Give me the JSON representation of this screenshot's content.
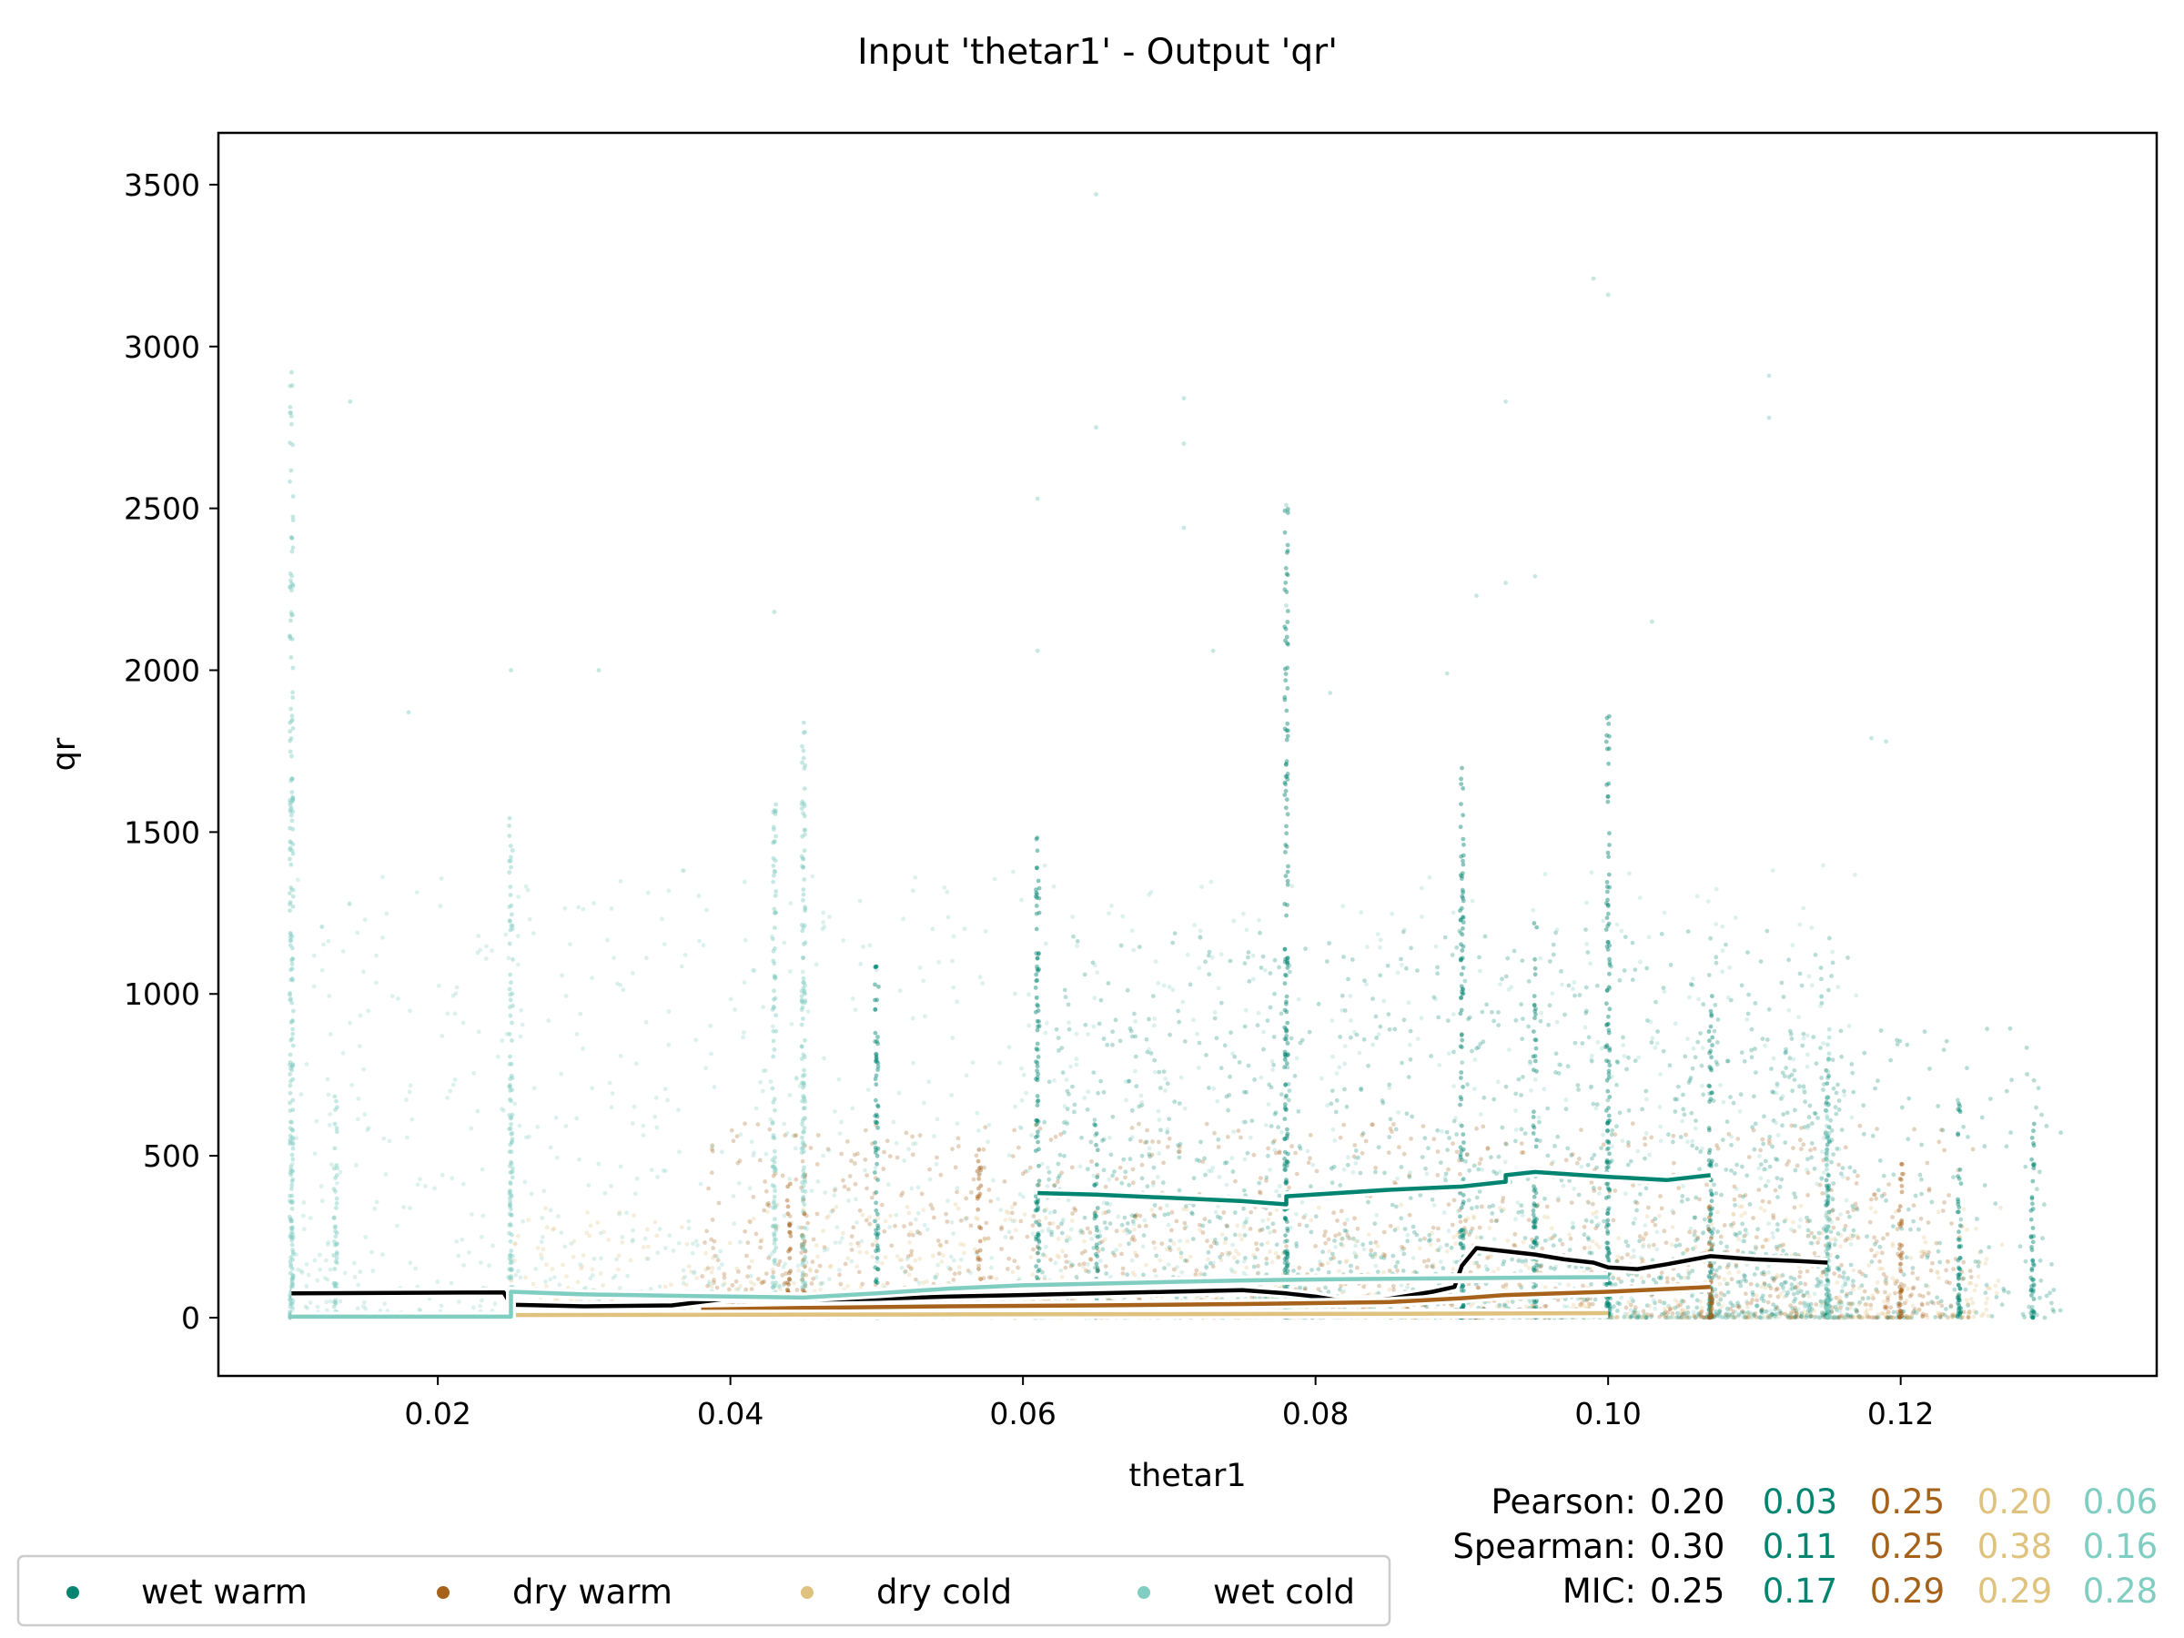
{
  "chart_data": {
    "type": "scatter",
    "title": "Input 'thetar1' - Output 'qr'",
    "xlabel": "thetar1",
    "ylabel": "qr",
    "xlim": [
      0.005,
      0.1375
    ],
    "ylim": [
      -180,
      3660
    ],
    "x_ticks": [
      0.02,
      0.04,
      0.06,
      0.08,
      0.1,
      0.12
    ],
    "x_tick_labels": [
      "0.02",
      "0.04",
      "0.06",
      "0.08",
      "0.10",
      "0.12"
    ],
    "y_ticks": [
      0,
      500,
      1000,
      1500,
      2000,
      2500,
      3000,
      3500
    ],
    "y_tick_labels": [
      "0",
      "500",
      "1000",
      "1500",
      "2000",
      "2500",
      "3000",
      "3500"
    ],
    "grid": false,
    "legend_position": "bottom-left, below axes",
    "colors": {
      "overall": "#000000",
      "wet warm": "#018571",
      "dry warm": "#a6611a",
      "dry cold": "#dfc27d",
      "wet cold": "#80cdc1"
    },
    "series": [
      {
        "name": "wet warm",
        "color": "#018571",
        "marker": "point",
        "x_range": [
          0.061,
          0.107
        ],
        "mean_curve": [
          [
            0.061,
            385
          ],
          [
            0.065,
            380
          ],
          [
            0.07,
            370
          ],
          [
            0.075,
            360
          ],
          [
            0.078,
            350
          ],
          [
            0.078,
            375
          ],
          [
            0.085,
            395
          ],
          [
            0.09,
            405
          ],
          [
            0.093,
            420
          ],
          [
            0.093,
            440
          ],
          [
            0.095,
            450
          ],
          [
            0.1,
            435
          ],
          [
            0.104,
            425
          ],
          [
            0.107,
            440
          ]
        ]
      },
      {
        "name": "dry warm",
        "color": "#a6611a",
        "marker": "point",
        "x_range": [
          0.038,
          0.107
        ],
        "mean_curve": [
          [
            0.038,
            25
          ],
          [
            0.045,
            30
          ],
          [
            0.055,
            35
          ],
          [
            0.065,
            38
          ],
          [
            0.075,
            42
          ],
          [
            0.085,
            48
          ],
          [
            0.09,
            60
          ],
          [
            0.093,
            70
          ],
          [
            0.1,
            80
          ],
          [
            0.107,
            95
          ]
        ]
      },
      {
        "name": "dry cold",
        "color": "#dfc27d",
        "marker": "point",
        "x_range": [
          0.025,
          0.1
        ],
        "mean_curve": [
          [
            0.025,
            8
          ],
          [
            0.04,
            9
          ],
          [
            0.055,
            10
          ],
          [
            0.07,
            11
          ],
          [
            0.085,
            12
          ],
          [
            0.1,
            14
          ]
        ]
      },
      {
        "name": "wet cold",
        "color": "#80cdc1",
        "marker": "point",
        "x_range": [
          0.01,
          0.1
        ],
        "mean_curve": [
          [
            0.01,
            3
          ],
          [
            0.025,
            3
          ],
          [
            0.025,
            80
          ],
          [
            0.03,
            72
          ],
          [
            0.04,
            65
          ],
          [
            0.045,
            62
          ],
          [
            0.05,
            75
          ],
          [
            0.055,
            90
          ],
          [
            0.06,
            100
          ],
          [
            0.065,
            105
          ],
          [
            0.07,
            110
          ],
          [
            0.075,
            115
          ],
          [
            0.08,
            118
          ],
          [
            0.085,
            120
          ],
          [
            0.09,
            122
          ],
          [
            0.095,
            124
          ],
          [
            0.1,
            125
          ]
        ]
      }
    ],
    "overall_curve": {
      "color": "#000000",
      "points": [
        [
          0.01,
          75
        ],
        [
          0.0245,
          78
        ],
        [
          0.025,
          40
        ],
        [
          0.03,
          35
        ],
        [
          0.036,
          38
        ],
        [
          0.04,
          60
        ],
        [
          0.045,
          55
        ],
        [
          0.05,
          58
        ],
        [
          0.055,
          65
        ],
        [
          0.06,
          70
        ],
        [
          0.065,
          75
        ],
        [
          0.07,
          80
        ],
        [
          0.075,
          85
        ],
        [
          0.078,
          75
        ],
        [
          0.08,
          65
        ],
        [
          0.082,
          50
        ],
        [
          0.085,
          58
        ],
        [
          0.088,
          80
        ],
        [
          0.0895,
          95
        ],
        [
          0.09,
          160
        ],
        [
          0.091,
          215
        ],
        [
          0.093,
          205
        ],
        [
          0.095,
          195
        ],
        [
          0.097,
          180
        ],
        [
          0.099,
          170
        ],
        [
          0.1,
          155
        ],
        [
          0.102,
          150
        ],
        [
          0.104,
          165
        ],
        [
          0.107,
          190
        ],
        [
          0.11,
          180
        ],
        [
          0.113,
          175
        ],
        [
          0.115,
          170
        ]
      ]
    },
    "point_clusters": [
      {
        "series": "wet warm",
        "x_range": [
          0.061,
          0.117
        ],
        "y_range": [
          0,
          1200
        ],
        "y_median": 300,
        "count": 1400
      },
      {
        "series": "wet warm",
        "x_range": [
          0.105,
          0.131
        ],
        "y_range": [
          0,
          900
        ],
        "y_median": 450,
        "count": 320
      },
      {
        "series": "dry warm",
        "x_range": [
          0.038,
          0.125
        ],
        "y_range": [
          0,
          600
        ],
        "y_median": 120,
        "count": 1400
      },
      {
        "series": "dry cold",
        "x_range": [
          0.025,
          0.127
        ],
        "y_range": [
          0,
          350
        ],
        "y_median": 70,
        "count": 1000
      },
      {
        "series": "wet cold",
        "x_range": [
          0.01,
          0.117
        ],
        "y_range": [
          0,
          1400
        ],
        "y_median": 220,
        "count": 1500
      }
    ],
    "vertical_stripes": [
      {
        "series": "wet cold",
        "x": 0.01,
        "y_max": 2900
      },
      {
        "series": "wet cold",
        "x": 0.013,
        "y_max": 700
      },
      {
        "series": "wet cold",
        "x": 0.025,
        "y_max": 1550
      },
      {
        "series": "wet cold",
        "x": 0.043,
        "y_max": 1600
      },
      {
        "series": "dry warm",
        "x": 0.044,
        "y_max": 420
      },
      {
        "series": "dry warm",
        "x": 0.045,
        "y_max": 450
      },
      {
        "series": "wet cold",
        "x": 0.045,
        "y_max": 1850
      },
      {
        "series": "wet warm",
        "x": 0.05,
        "y_max": 1100
      },
      {
        "series": "dry warm",
        "x": 0.057,
        "y_max": 550
      },
      {
        "series": "wet warm",
        "x": 0.061,
        "y_max": 1500
      },
      {
        "series": "wet warm",
        "x": 0.065,
        "y_max": 600
      },
      {
        "series": "wet warm",
        "x": 0.078,
        "y_max": 2500
      },
      {
        "series": "wet warm",
        "x": 0.09,
        "y_max": 1700
      },
      {
        "series": "wet warm",
        "x": 0.095,
        "y_max": 1250
      },
      {
        "series": "wet warm",
        "x": 0.1,
        "y_max": 1900
      },
      {
        "series": "wet warm",
        "x": 0.107,
        "y_max": 1000
      },
      {
        "series": "dry warm",
        "x": 0.107,
        "y_max": 350
      },
      {
        "series": "wet warm",
        "x": 0.115,
        "y_max": 800
      },
      {
        "series": "wet cold",
        "x": 0.115,
        "y_max": 900
      },
      {
        "series": "dry warm",
        "x": 0.12,
        "y_max": 500
      },
      {
        "series": "wet warm",
        "x": 0.124,
        "y_max": 700
      },
      {
        "series": "wet warm",
        "x": 0.129,
        "y_max": 600
      }
    ],
    "outliers": [
      {
        "x": 0.01,
        "y": 2920
      },
      {
        "x": 0.01,
        "y": 2760
      },
      {
        "x": 0.014,
        "y": 2830
      },
      {
        "x": 0.01,
        "y": 2170
      },
      {
        "x": 0.065,
        "y": 3470
      },
      {
        "x": 0.065,
        "y": 2750
      },
      {
        "x": 0.071,
        "y": 2840
      },
      {
        "x": 0.071,
        "y": 2700
      },
      {
        "x": 0.071,
        "y": 2440
      },
      {
        "x": 0.061,
        "y": 2530
      },
      {
        "x": 0.078,
        "y": 2510
      },
      {
        "x": 0.078,
        "y": 2200
      },
      {
        "x": 0.099,
        "y": 3210
      },
      {
        "x": 0.1,
        "y": 3160
      },
      {
        "x": 0.093,
        "y": 2830
      },
      {
        "x": 0.111,
        "y": 2910
      },
      {
        "x": 0.111,
        "y": 2780
      },
      {
        "x": 0.095,
        "y": 2290
      },
      {
        "x": 0.093,
        "y": 2270
      },
      {
        "x": 0.091,
        "y": 2230
      },
      {
        "x": 0.103,
        "y": 2150
      },
      {
        "x": 0.073,
        "y": 2060
      },
      {
        "x": 0.043,
        "y": 2180
      },
      {
        "x": 0.031,
        "y": 2000
      },
      {
        "x": 0.025,
        "y": 2000
      },
      {
        "x": 0.018,
        "y": 1870
      },
      {
        "x": 0.081,
        "y": 1930
      },
      {
        "x": 0.118,
        "y": 1790
      },
      {
        "x": 0.119,
        "y": 1780
      },
      {
        "x": 0.061,
        "y": 2060
      },
      {
        "x": 0.089,
        "y": 1990
      }
    ]
  },
  "legend": {
    "items": [
      {
        "label": "wet warm",
        "color": "#018571"
      },
      {
        "label": "dry warm",
        "color": "#a6611a"
      },
      {
        "label": "dry cold",
        "color": "#dfc27d"
      },
      {
        "label": "wet cold",
        "color": "#80cdc1"
      }
    ]
  },
  "stats": {
    "rows": [
      {
        "label": "Pearson:",
        "overall": "0.20",
        "values": [
          "0.03",
          "0.25",
          "0.20",
          "0.06"
        ]
      },
      {
        "label": "Spearman:",
        "overall": "0.30",
        "values": [
          "0.11",
          "0.25",
          "0.38",
          "0.16"
        ]
      },
      {
        "label": "MIC:",
        "overall": "0.25",
        "values": [
          "0.17",
          "0.29",
          "0.29",
          "0.28"
        ]
      }
    ],
    "value_colors": [
      "#018571",
      "#a6611a",
      "#dfc27d",
      "#80cdc1"
    ]
  }
}
